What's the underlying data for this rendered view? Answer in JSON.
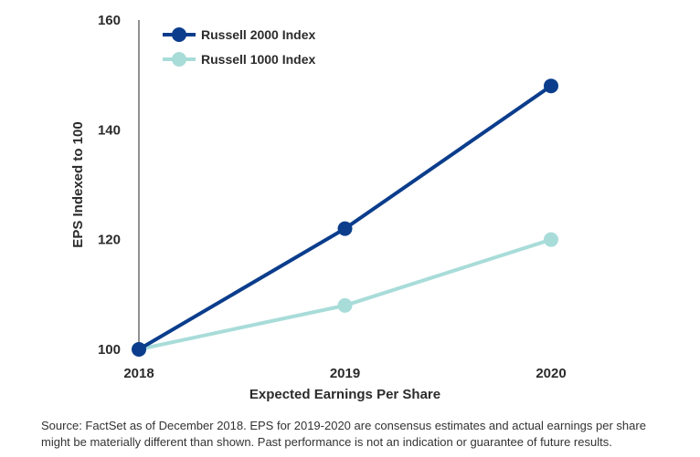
{
  "chart_data": {
    "type": "line",
    "categories": [
      "2018",
      "2019",
      "2020"
    ],
    "series": [
      {
        "name": "Russell 2000 Index",
        "values": [
          100,
          122,
          148
        ],
        "color": "#0b3d8c"
      },
      {
        "name": "Russell 1000 Index",
        "values": [
          100,
          108,
          120
        ],
        "color": "#a8dcd9"
      }
    ],
    "xlabel": "Expected Earnings Per Share",
    "ylabel": "EPS Indexed to 100",
    "ylim": [
      100,
      160
    ],
    "yticks": [
      100,
      120,
      140,
      160
    ],
    "grid": false,
    "legend_position": "top-left"
  },
  "source_note": "Source: FactSet as of December 2018. EPS for 2019-2020 are consensus estimates and actual earnings per share might be materially different than shown. Past performance is not an indication or guarantee of future results."
}
